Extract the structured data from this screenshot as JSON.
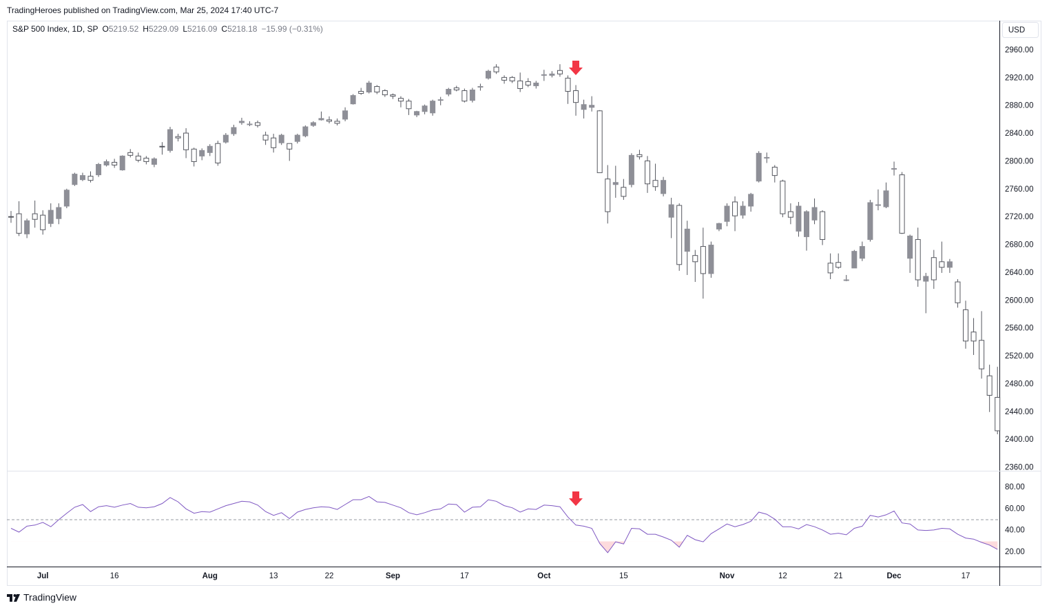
{
  "header": {
    "text": "TradingHeroes published on TradingView.com, Mar 25, 2024 17:40 UTC-7"
  },
  "legend": {
    "symbol": "S&P 500 Index, 1D, SP",
    "items": [
      {
        "label": "O",
        "value": "5219.52"
      },
      {
        "label": "H",
        "value": "5229.09"
      },
      {
        "label": "L",
        "value": "5216.09"
      },
      {
        "label": "C",
        "value": "5218.18"
      }
    ],
    "change": "−15.99 (−0.31%)"
  },
  "currency": "USD",
  "footer": {
    "brand": "TradingView"
  },
  "chart_data": [
    {
      "type": "candlestick",
      "categories": [
        null,
        null,
        null,
        null,
        "Jul",
        null,
        null,
        null,
        null,
        null,
        null,
        null,
        null,
        "16",
        null,
        null,
        null,
        null,
        null,
        null,
        null,
        null,
        null,
        null,
        null,
        "Aug",
        null,
        null,
        null,
        null,
        null,
        null,
        null,
        "13",
        null,
        null,
        null,
        null,
        null,
        null,
        "22",
        null,
        null,
        null,
        null,
        null,
        null,
        null,
        "Sep",
        null,
        null,
        null,
        null,
        null,
        null,
        null,
        null,
        "17",
        null,
        null,
        null,
        null,
        null,
        null,
        null,
        null,
        null,
        "Oct",
        null,
        null,
        null,
        null,
        null,
        null,
        null,
        null,
        null,
        "15",
        null,
        null,
        null,
        null,
        null,
        null,
        null,
        null,
        null,
        null,
        null,
        null,
        "Nov",
        null,
        null,
        null,
        null,
        null,
        null,
        "12",
        null,
        null,
        null,
        null,
        null,
        null,
        "21",
        null,
        null,
        null,
        null,
        null,
        null,
        "Dec",
        null,
        null,
        null,
        null,
        null,
        null,
        null,
        null,
        "17",
        null,
        null,
        null,
        null
      ],
      "open": [
        2721,
        2725,
        2696,
        2725,
        2723,
        2711,
        2718,
        2736,
        2767,
        2774,
        2779,
        2781,
        2795,
        2799,
        2788,
        2813,
        2808,
        2805,
        2796,
        2822,
        2816,
        2836,
        2841,
        2818,
        2808,
        2813,
        2826,
        2828,
        2840,
        2856,
        2854,
        2856,
        2838,
        2834,
        2827,
        2826,
        2829,
        2837,
        2852,
        2860,
        2860,
        2858,
        2861,
        2883,
        2901,
        2900,
        2908,
        2902,
        2896,
        2891,
        2887,
        2867,
        2872,
        2870,
        2889,
        2897,
        2906,
        2902,
        2888,
        2908,
        2920,
        2936,
        2921,
        2921,
        2916,
        2915,
        2909,
        2925,
        2924,
        2931,
        2920,
        2902,
        2875,
        2878,
        2873,
        2775,
        2767,
        2763,
        2767,
        2810,
        2801,
        2773,
        2754,
        2720,
        2737,
        2671,
        2665,
        2678,
        2639,
        2703,
        2714,
        2742,
        2723,
        2736,
        2772,
        2806,
        2792,
        2772,
        2728,
        2700,
        2692,
        2716,
        2728,
        2654,
        2655,
        2630,
        2647,
        2661,
        2688,
        2737,
        2735,
        2790,
        2781,
        2661,
        2688,
        2628,
        2662,
        2656,
        2648,
        2627,
        2587,
        2555,
        2543,
        2492,
        2461
      ],
      "high": [
        2729,
        2743,
        2718,
        2744,
        2730,
        2740,
        2740,
        2761,
        2784,
        2784,
        2786,
        2798,
        2803,
        2804,
        2809,
        2818,
        2813,
        2808,
        2806,
        2828,
        2850,
        2840,
        2848,
        2820,
        2819,
        2825,
        2830,
        2841,
        2853,
        2863,
        2858,
        2859,
        2843,
        2840,
        2840,
        2826,
        2840,
        2852,
        2858,
        2872,
        2865,
        2862,
        2878,
        2897,
        2906,
        2916,
        2910,
        2904,
        2898,
        2894,
        2890,
        2873,
        2882,
        2889,
        2893,
        2906,
        2909,
        2905,
        2906,
        2912,
        2932,
        2940,
        2924,
        2923,
        2928,
        2920,
        2916,
        2932,
        2930,
        2940,
        2924,
        2910,
        2889,
        2894,
        2874,
        2795,
        2794,
        2775,
        2812,
        2817,
        2808,
        2797,
        2778,
        2748,
        2740,
        2715,
        2673,
        2705,
        2685,
        2712,
        2740,
        2750,
        2743,
        2755,
        2815,
        2813,
        2795,
        2774,
        2740,
        2742,
        2730,
        2747,
        2730,
        2668,
        2668,
        2637,
        2673,
        2685,
        2745,
        2760,
        2770,
        2800,
        2785,
        2695,
        2705,
        2640,
        2673,
        2685,
        2660,
        2631,
        2600,
        2575,
        2585,
        2508,
        2505
      ],
      "low": [
        2712,
        2693,
        2690,
        2705,
        2695,
        2706,
        2710,
        2733,
        2765,
        2772,
        2770,
        2778,
        2793,
        2791,
        2787,
        2806,
        2799,
        2796,
        2792,
        2810,
        2813,
        2829,
        2805,
        2793,
        2802,
        2808,
        2794,
        2826,
        2837,
        2853,
        2851,
        2849,
        2824,
        2813,
        2824,
        2801,
        2826,
        2835,
        2850,
        2859,
        2855,
        2852,
        2858,
        2882,
        2896,
        2898,
        2897,
        2893,
        2890,
        2878,
        2867,
        2864,
        2868,
        2866,
        2881,
        2894,
        2901,
        2885,
        2885,
        2902,
        2918,
        2926,
        2912,
        2913,
        2900,
        2907,
        2905,
        2916,
        2921,
        2922,
        2883,
        2866,
        2862,
        2872,
        2784,
        2711,
        2748,
        2745,
        2763,
        2803,
        2755,
        2758,
        2750,
        2690,
        2643,
        2637,
        2627,
        2603,
        2633,
        2700,
        2707,
        2700,
        2718,
        2728,
        2770,
        2798,
        2770,
        2720,
        2710,
        2692,
        2672,
        2710,
        2680,
        2631,
        2646,
        2628,
        2647,
        2657,
        2685,
        2730,
        2733,
        2780,
        2696,
        2640,
        2620,
        2582,
        2617,
        2640,
        2640,
        2590,
        2531,
        2522,
        2488,
        2440,
        2408
      ],
      "close": [
        2720,
        2697,
        2715,
        2717,
        2702,
        2730,
        2734,
        2759,
        2782,
        2780,
        2773,
        2796,
        2800,
        2795,
        2808,
        2809,
        2802,
        2800,
        2804,
        2821,
        2846,
        2834,
        2817,
        2800,
        2816,
        2822,
        2798,
        2838,
        2849,
        2858,
        2854,
        2852,
        2831,
        2820,
        2838,
        2818,
        2838,
        2850,
        2856,
        2862,
        2858,
        2855,
        2873,
        2895,
        2898,
        2913,
        2900,
        2896,
        2894,
        2887,
        2876,
        2872,
        2880,
        2887,
        2889,
        2904,
        2903,
        2887,
        2903,
        2908,
        2930,
        2929,
        2917,
        2916,
        2905,
        2910,
        2913,
        2925,
        2926,
        2926,
        2901,
        2885,
        2882,
        2881,
        2784,
        2728,
        2770,
        2750,
        2809,
        2807,
        2768,
        2764,
        2773,
        2738,
        2652,
        2703,
        2656,
        2639,
        2680,
        2711,
        2736,
        2722,
        2736,
        2753,
        2812,
        2806,
        2780,
        2725,
        2720,
        2736,
        2728,
        2734,
        2688,
        2640,
        2648,
        2630,
        2671,
        2678,
        2741,
        2738,
        2758,
        2790,
        2697,
        2693,
        2630,
        2635,
        2630,
        2648,
        2656,
        2597,
        2542,
        2542,
        2502,
        2464,
        2413
      ],
      "up_color": "#8e8f97",
      "down_color": "#ffffff",
      "wick_color": "#55575f",
      "ylim": [
        2355.5,
        3002.6
      ],
      "yticks": [
        {
          "value": 2960,
          "label": "2960.00"
        },
        {
          "value": 2920,
          "label": "2920.00"
        },
        {
          "value": 2880,
          "label": "2880.00"
        },
        {
          "value": 2840,
          "label": "2840.00"
        },
        {
          "value": 2800,
          "label": "2800.00"
        },
        {
          "value": 2760,
          "label": "2760.00"
        },
        {
          "value": 2720,
          "label": "2720.00"
        },
        {
          "value": 2680,
          "label": "2680.00"
        },
        {
          "value": 2640,
          "label": "2640.00"
        },
        {
          "value": 2600,
          "label": "2600.00"
        },
        {
          "value": 2560,
          "label": "2560.00"
        },
        {
          "value": 2520,
          "label": "2520.00"
        },
        {
          "value": 2480,
          "label": "2480.00"
        },
        {
          "value": 2440,
          "label": "2440.00"
        },
        {
          "value": 2400,
          "label": "2400.00"
        },
        {
          "value": 2360,
          "label": "2360.00"
        }
      ]
    },
    {
      "type": "line",
      "values": [
        42,
        38.5,
        44,
        45,
        47.5,
        43.5,
        50,
        56,
        61.5,
        64,
        57.5,
        62,
        63,
        61.5,
        63.5,
        65,
        61.5,
        61,
        62,
        65,
        70.5,
        66.5,
        60,
        56,
        57.5,
        57,
        60,
        63,
        65,
        67,
        66.5,
        63.5,
        57.5,
        54,
        56.5,
        51,
        57,
        59.5,
        61,
        62,
        61.5,
        59.5,
        64,
        68.5,
        68.5,
        71.5,
        66.5,
        66,
        63.5,
        61,
        56.5,
        54.5,
        56.5,
        59,
        60,
        64.5,
        64,
        57,
        61.5,
        62,
        68.5,
        67,
        63,
        61,
        57,
        60,
        59.5,
        63.5,
        63,
        62,
        52.5,
        45,
        44,
        42,
        28,
        19.5,
        29.5,
        27.5,
        42,
        41.5,
        36.5,
        36.5,
        34,
        31,
        24.5,
        35.5,
        31.5,
        29.5,
        37,
        41.5,
        46,
        43.5,
        45.5,
        48.5,
        57,
        55,
        50.5,
        43.5,
        43.5,
        41.5,
        45.5,
        43.5,
        40.5,
        36.5,
        37.5,
        36,
        42,
        44,
        54,
        52.5,
        54.5,
        58,
        47,
        46,
        40.5,
        40,
        40.5,
        42,
        41.5,
        36.5,
        33,
        32,
        29,
        26.5,
        22.5
      ],
      "color": "#7e57c2",
      "midline": 50,
      "oversold": 30,
      "fill_color": "#f23645",
      "ylim": [
        6.6,
        94
      ],
      "yticks": [
        {
          "value": 80,
          "label": "80.00"
        },
        {
          "value": 60,
          "label": "60.00"
        },
        {
          "value": 40,
          "label": "40.00"
        },
        {
          "value": 20,
          "label": "20.00"
        }
      ]
    }
  ]
}
